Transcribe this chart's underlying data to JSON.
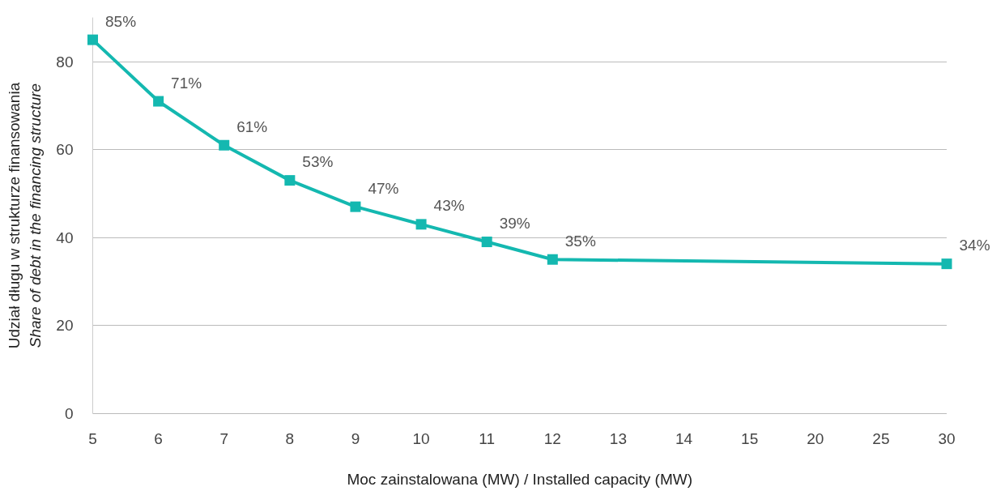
{
  "chart_data": {
    "type": "line",
    "xlabel": "Moc zainstalowana (MW) / Installed capacity (MW)",
    "ylabel": "Udział długu w strukturze finansowania\nShare of debt in the financing structure",
    "categories": [
      "5",
      "6",
      "7",
      "8",
      "9",
      "10",
      "11",
      "12",
      "13",
      "14",
      "15",
      "20",
      "25",
      "30"
    ],
    "series": [
      {
        "color": "#14b8b0",
        "values": [
          85,
          71,
          61,
          53,
          47,
          43,
          39,
          35,
          null,
          null,
          null,
          null,
          null,
          34
        ],
        "value_labels": [
          "85%",
          "71%",
          "61%",
          "53%",
          "47%",
          "43%",
          "39%",
          "35%",
          null,
          null,
          null,
          null,
          null,
          "34%"
        ]
      }
    ],
    "ylim": [
      0,
      90
    ],
    "yticks": [
      0,
      20,
      40,
      60,
      80
    ],
    "grid": "y",
    "marker": "square",
    "line_style": "solid"
  }
}
